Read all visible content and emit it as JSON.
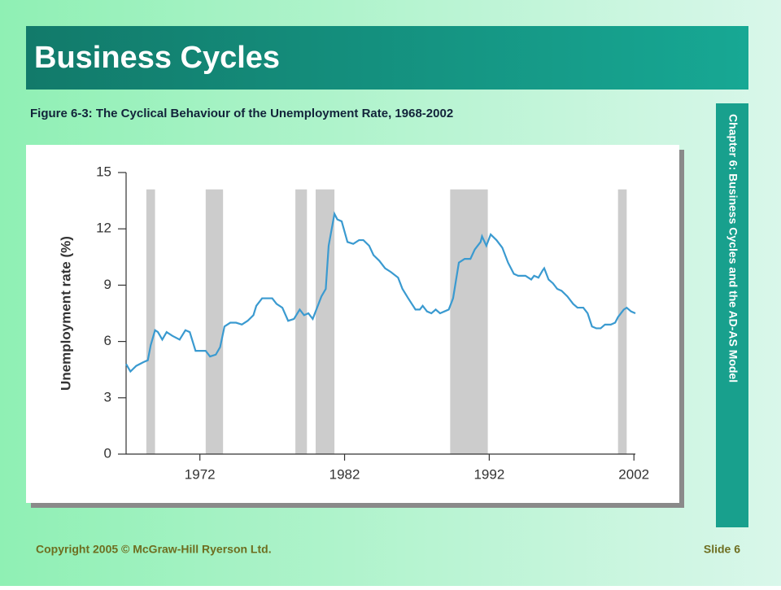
{
  "slide": {
    "title": "Business Cycles",
    "caption": "Figure 6-3: The Cyclical Behaviour of the Unemployment Rate, 1968-2002",
    "sidebar": "Chapter 6: Business Cycles and the AD-AS Model",
    "footer_left": "Copyright 2005 © McGraw-Hill Ryerson Ltd.",
    "footer_right": "Slide 6"
  },
  "chart_data": {
    "type": "line",
    "y_label": "Unemployment rate (%)",
    "color": "#3a9ad0",
    "shade_color": "#cccccc",
    "x": [
      1966.9,
      1967.2,
      1967.6,
      1968.1,
      1968.4,
      1968.6,
      1968.9,
      1969.1,
      1969.4,
      1969.7,
      1970.1,
      1970.6,
      1971.0,
      1971.3,
      1971.7,
      1972.1,
      1972.4,
      1972.7,
      1973.1,
      1973.4,
      1973.7,
      1974.1,
      1974.5,
      1974.9,
      1975.3,
      1975.7,
      1975.9,
      1976.3,
      1976.6,
      1977.0,
      1977.3,
      1977.7,
      1978.1,
      1978.5,
      1978.9,
      1979.2,
      1979.5,
      1979.8,
      1980.0,
      1980.4,
      1980.7,
      1980.9,
      1981.3,
      1981.5,
      1981.8,
      1982.2,
      1982.6,
      1983.0,
      1983.3,
      1983.7,
      1984.0,
      1984.4,
      1984.8,
      1985.2,
      1985.7,
      1986.0,
      1986.4,
      1986.9,
      1987.2,
      1987.4,
      1987.7,
      1988.0,
      1988.3,
      1988.6,
      1988.9,
      1989.2,
      1989.5,
      1989.9,
      1990.3,
      1990.7,
      1991.0,
      1991.4,
      1991.5,
      1991.8,
      1992.1,
      1992.5,
      1992.9,
      1993.3,
      1993.7,
      1994.0,
      1994.5,
      1994.9,
      1995.1,
      1995.4,
      1995.7,
      1995.8,
      1996.1,
      1996.4,
      1996.7,
      1997.0,
      1997.4,
      1997.8,
      1998.1,
      1998.5,
      1998.8,
      1999.1,
      1999.4,
      1999.7,
      2000.0,
      2000.4,
      2000.7,
      2000.9,
      2001.3,
      2001.5,
      2001.8,
      2002.1
    ],
    "values": [
      4.8,
      4.4,
      4.7,
      4.9,
      5.0,
      5.8,
      6.6,
      6.5,
      6.1,
      6.5,
      6.3,
      6.1,
      6.6,
      6.5,
      5.5,
      5.5,
      5.5,
      5.2,
      5.3,
      5.7,
      6.8,
      7.0,
      7.0,
      6.9,
      7.1,
      7.4,
      7.9,
      8.3,
      8.3,
      8.3,
      8.0,
      7.8,
      7.1,
      7.2,
      7.7,
      7.4,
      7.5,
      7.2,
      7.6,
      8.4,
      8.8,
      11.1,
      12.8,
      12.5,
      12.4,
      11.3,
      11.2,
      11.4,
      11.4,
      11.1,
      10.6,
      10.3,
      9.9,
      9.7,
      9.4,
      8.8,
      8.3,
      7.7,
      7.7,
      7.9,
      7.6,
      7.5,
      7.7,
      7.5,
      7.6,
      7.7,
      8.3,
      10.2,
      10.4,
      10.4,
      10.9,
      11.3,
      11.6,
      11.1,
      11.7,
      11.4,
      11.0,
      10.2,
      9.6,
      9.5,
      9.5,
      9.3,
      9.5,
      9.4,
      9.8,
      9.9,
      9.3,
      9.1,
      8.8,
      8.7,
      8.4,
      8.0,
      7.8,
      7.8,
      7.5,
      6.8,
      6.7,
      6.7,
      6.9,
      6.9,
      7.0,
      7.3,
      7.7,
      7.8,
      7.6,
      7.5
    ],
    "shaded_periods": [
      [
        1968.3,
        1968.9
      ],
      [
        1972.4,
        1973.6
      ],
      [
        1978.6,
        1979.4
      ],
      [
        1980.0,
        1981.3
      ],
      [
        1989.3,
        1991.9
      ],
      [
        2000.9,
        2001.5
      ]
    ],
    "xlim": [
      1966.9,
      2002.1
    ],
    "xticks": [
      1972,
      1982,
      1992,
      2002
    ],
    "ylim": [
      0,
      15
    ],
    "yticks": [
      0,
      3,
      6,
      9,
      12,
      15
    ]
  }
}
